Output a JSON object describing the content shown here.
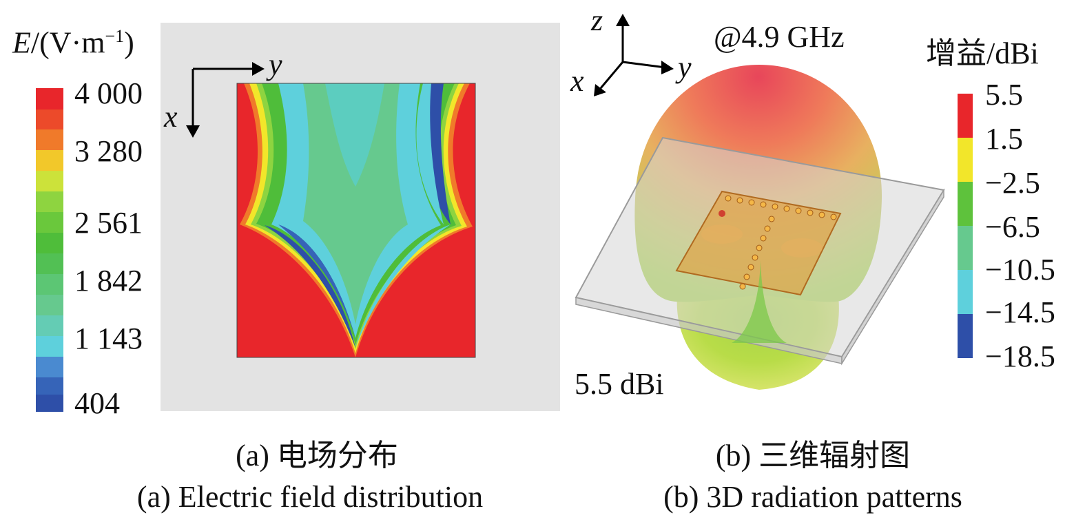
{
  "panel_a": {
    "colorbar_title_var": "E",
    "colorbar_title_unit": "/(V·m",
    "colorbar_title_exp": "−1",
    "colorbar_title_close": ")",
    "ticks": [
      "4 000",
      "3 280",
      "2 561",
      "1 842",
      "1 143",
      "404"
    ],
    "axis_x": "x",
    "axis_y": "y",
    "caption_cn": "(a) 电场分布",
    "caption_en": "(a) Electric field distribution"
  },
  "panel_b": {
    "freq_label": "@4.9 GHz",
    "colorbar_title": "增益/dBi",
    "ticks": [
      "5.5",
      "1.5",
      "−2.5",
      "−6.5",
      "−10.5",
      "−14.5",
      "−18.5"
    ],
    "axis_x": "x",
    "axis_y": "y",
    "axis_z": "z",
    "peak_label": "5.5 dBi",
    "caption_cn": "(b) 三维辐射图",
    "caption_en": "(b) 3D radiation patterns"
  },
  "colors": {
    "red": "#e8262b",
    "orange": "#f07a2a",
    "yellow": "#f2e62a",
    "green": "#5ec23c",
    "mint": "#66c98e",
    "cyan": "#5ed0dc",
    "blue": "#2e4fa8",
    "panel_bg": "#e3e3e3"
  }
}
